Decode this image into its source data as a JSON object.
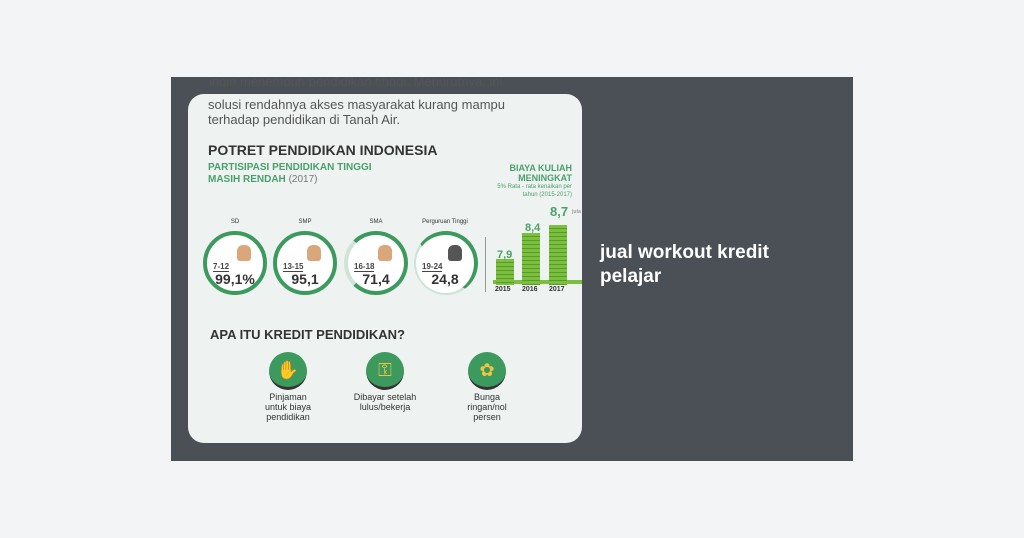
{
  "post": {
    "title": "jual workout kredit pelajar"
  },
  "infographic": {
    "intro_cut": "ingin menempuh pendidikan tinggi. Menurutnya, ini",
    "intro": "solusi rendahnya akses masyarakat kurang mampu terhadap pendidikan di Tanah Air.",
    "heading": "POTRET PENDIDIKAN INDONESIA",
    "participation_title": "PARTISIPASI PENDIDIKAN TINGGI MASIH RENDAH",
    "participation_year": "(2017)",
    "levels": [
      {
        "label": "SD",
        "age": "7-12",
        "value": "99,1%"
      },
      {
        "label": "SMP",
        "age": "13-15",
        "value": "95,1"
      },
      {
        "label": "SMA",
        "age": "16-18",
        "value": "71,4"
      },
      {
        "label": "Perguruan Tinggi",
        "age": "19-24",
        "value": "24,8"
      }
    ],
    "cost_title": "BIAYA KULIAH MENINGKAT",
    "cost_note": "5% Rata - rata kenaikan per tahun (2015-2017)",
    "costs": [
      {
        "year": "2015",
        "value": "7,9"
      },
      {
        "year": "2016",
        "value": "8,4"
      },
      {
        "year": "2017",
        "value": "8,7"
      }
    ],
    "cost_unit": "juta",
    "credit_heading": "APA ITU KREDIT PENDIDIKAN?",
    "features": [
      {
        "icon": "money-hand-icon",
        "text": "Pinjaman untuk biaya pendidikan"
      },
      {
        "icon": "key-icon",
        "text": "Dibayar setelah lulus/bekerja"
      },
      {
        "icon": "plant-icon",
        "text": "Bunga ringan/nol persen"
      }
    ]
  }
}
